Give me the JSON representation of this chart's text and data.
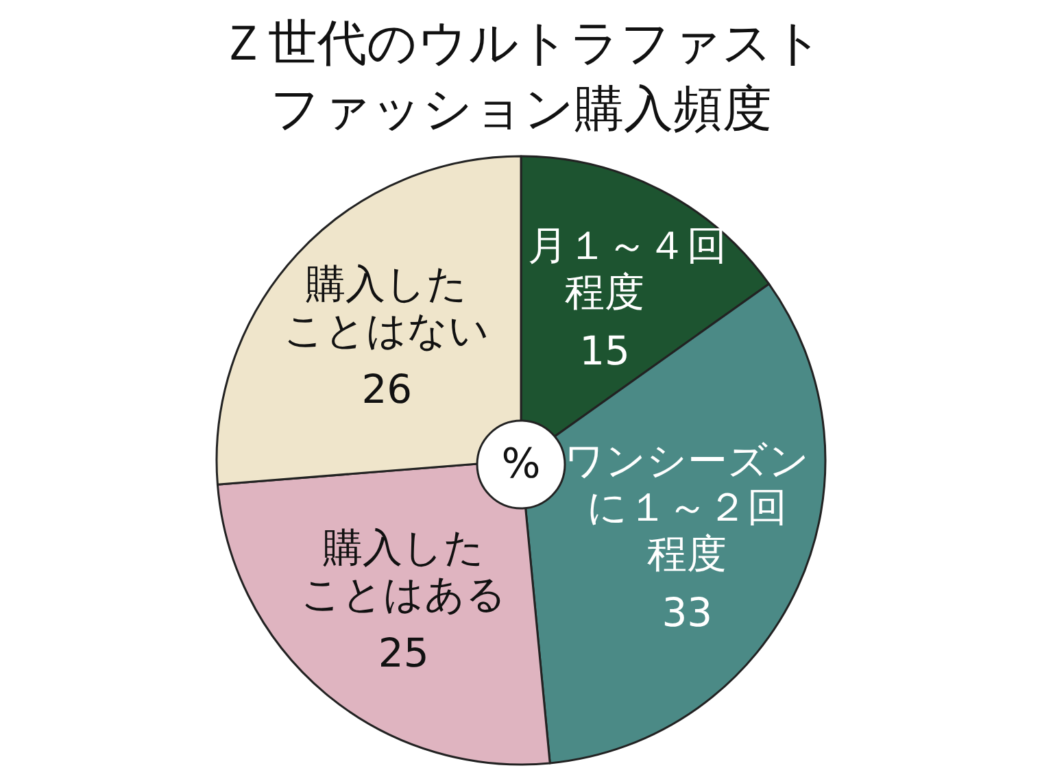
{
  "chart_data": {
    "type": "pie",
    "title": "Ｚ世代のウルトラファストファッション購入頻度",
    "categories": [
      "月１～４回程度",
      "ワンシーズンに１～２回程度",
      "購入したことはある",
      "購入したことはない"
    ],
    "values": [
      15,
      33,
      25,
      26
    ],
    "colors": [
      "#1d5430",
      "#4b8a86",
      "#dfb4c0",
      "#efe5cb"
    ],
    "data_labels": true,
    "annotations": [
      "%"
    ]
  }
}
